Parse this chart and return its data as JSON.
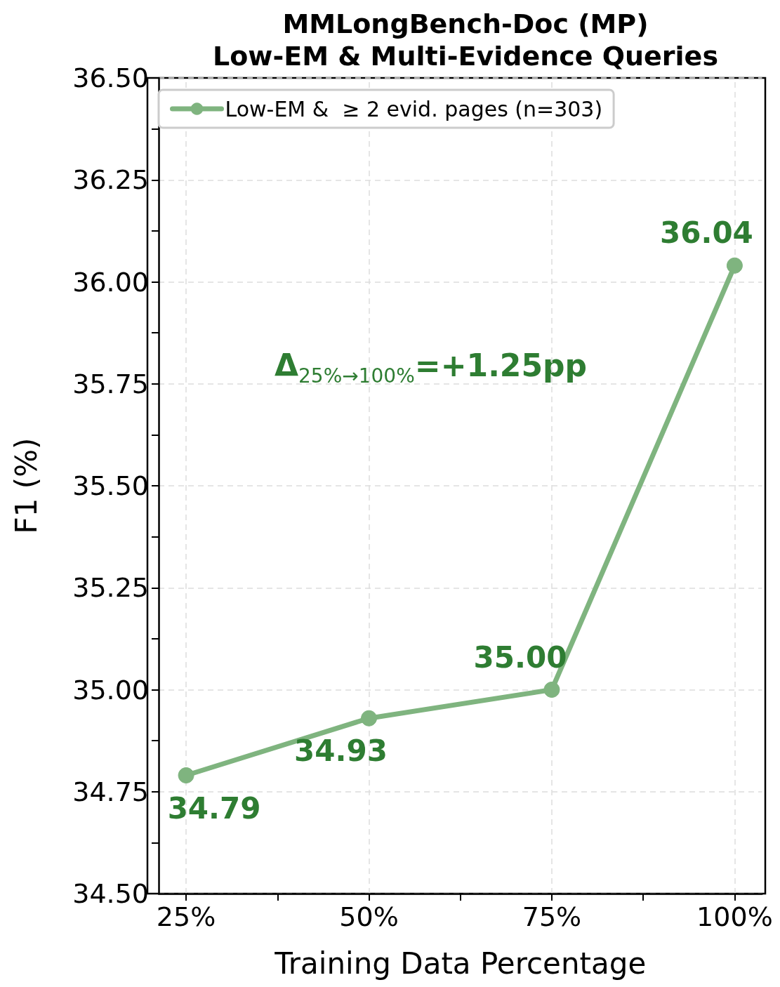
{
  "chart_data": {
    "type": "line",
    "title": "MMLongBench-Doc (MP)\nLow-EM & Multi-Evidence Queries",
    "xlabel": "Training Data Percentage",
    "ylabel": "F1 (%)",
    "x": [
      25,
      50,
      75,
      100
    ],
    "series": [
      {
        "name": "Low-EM &  ≥ 2 evid. pages (n=303)",
        "color": "#7fb47f",
        "values": [
          34.79,
          34.93,
          35.0,
          36.04
        ],
        "value_labels": [
          "34.79",
          "34.93",
          "35.00",
          "36.04"
        ]
      }
    ],
    "annotations": [
      "Δ$_{25%→100%}$=+1.25pp"
    ],
    "xlim": [
      21.25,
      103.75
    ],
    "xticks": [
      {
        "value": 25,
        "label": "25%"
      },
      {
        "value": 37.5,
        "label": null
      },
      {
        "value": 50,
        "label": "50%"
      },
      {
        "value": 62.5,
        "label": null
      },
      {
        "value": 75,
        "label": "75%"
      },
      {
        "value": 87.5,
        "label": null
      },
      {
        "value": 100,
        "label": "100%"
      }
    ],
    "ylim": [
      34.5,
      36.5
    ],
    "yticks": [
      {
        "value": 34.5,
        "label": "34.50"
      },
      {
        "value": 34.625,
        "label": null
      },
      {
        "value": 34.75,
        "label": "34.75"
      },
      {
        "value": 34.875,
        "label": null
      },
      {
        "value": 35.0,
        "label": "35.00"
      },
      {
        "value": 35.125,
        "label": null
      },
      {
        "value": 35.25,
        "label": "35.25"
      },
      {
        "value": 35.375,
        "label": null
      },
      {
        "value": 35.5,
        "label": "35.50"
      },
      {
        "value": 35.625,
        "label": null
      },
      {
        "value": 35.75,
        "label": "35.75"
      },
      {
        "value": 35.875,
        "label": null
      },
      {
        "value": 36.0,
        "label": "36.00"
      },
      {
        "value": 36.125,
        "label": null
      },
      {
        "value": 36.25,
        "label": "36.25"
      },
      {
        "value": 36.375,
        "label": null
      },
      {
        "value": 36.5,
        "label": "36.50"
      }
    ],
    "grid": true,
    "legend": "top left",
    "marker": "circle",
    "line_style": "solid"
  }
}
